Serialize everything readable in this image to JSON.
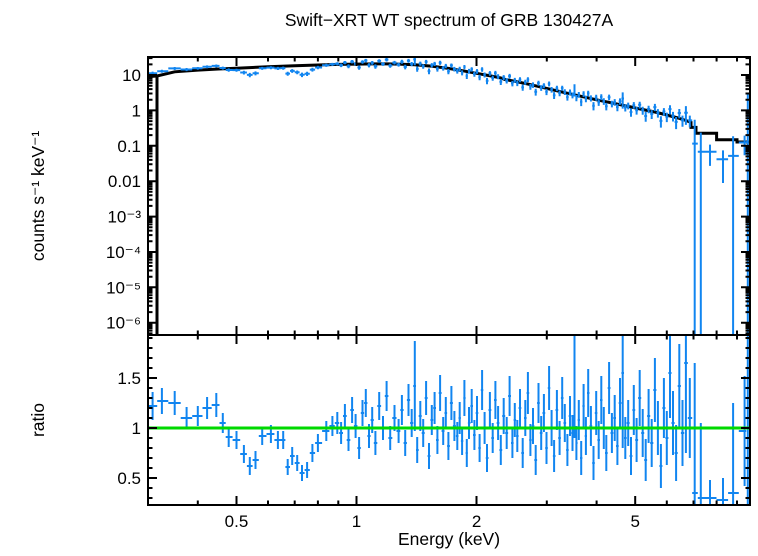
{
  "figure": {
    "background": "#ffffff"
  },
  "chart_data": {
    "type": "scatter",
    "title": "Swift−XRT WT spectrum of GRB 130427A",
    "xlabel": "Energy (keV)",
    "x_scale": "log",
    "x_range": [
      0.3,
      9.7
    ],
    "x_major_ticks": [
      {
        "value": 0.5,
        "label": "0.5"
      },
      {
        "value": 1,
        "label": "1"
      },
      {
        "value": 2,
        "label": "2"
      },
      {
        "value": 5,
        "label": "5"
      }
    ],
    "x_minor_ticks": [
      0.4,
      0.6,
      0.7,
      0.8,
      0.9,
      3,
      4,
      6,
      7,
      8,
      9
    ],
    "panels": [
      {
        "name": "spectrum",
        "ylabel": "counts s⁻¹ keV⁻¹",
        "y_scale": "log",
        "y_range": [
          4.5e-07,
          32.3
        ],
        "y_major_ticks": [
          {
            "value": 10,
            "label": "10"
          },
          {
            "value": 1,
            "label": "1"
          },
          {
            "value": 0.1,
            "label": "0.1"
          },
          {
            "value": 0.01,
            "label": "0.01"
          },
          {
            "value": 0.001,
            "label": "10⁻³"
          },
          {
            "value": 0.0001,
            "label": "10⁻⁴"
          },
          {
            "value": 1e-05,
            "label": "10⁻⁵"
          },
          {
            "value": 1e-06,
            "label": "10⁻⁶"
          }
        ]
      },
      {
        "name": "ratio",
        "ylabel": "ratio",
        "y_scale": "linear",
        "y_range": [
          0.23,
          1.93
        ],
        "y_major_ticks": [
          {
            "value": 0.5,
            "label": "0.5"
          },
          {
            "value": 1,
            "label": "1"
          },
          {
            "value": 1.5,
            "label": "1.5"
          }
        ],
        "y_minor_step": 0.1,
        "reference_line": {
          "value": 1,
          "color": "#00d900"
        }
      }
    ],
    "colors": {
      "data": "#1185f0",
      "model": "#000000",
      "frame": "#000000"
    },
    "model_left_edge": {
      "e": 0.316,
      "v": 9.4
    },
    "model": [
      [
        0.3,
        9.0
      ],
      [
        0.316,
        9.4
      ],
      [
        0.35,
        12.3
      ],
      [
        0.4,
        13.8
      ],
      [
        0.45,
        14.8
      ],
      [
        0.5,
        15.6
      ],
      [
        0.6,
        17.1
      ],
      [
        0.7,
        18.3
      ],
      [
        0.8,
        19.2
      ],
      [
        0.9,
        19.9
      ],
      [
        1.0,
        20.4
      ],
      [
        1.1,
        20.6
      ],
      [
        1.2,
        20.6
      ],
      [
        1.3,
        20.2
      ],
      [
        1.4,
        19.4
      ],
      [
        1.55,
        17.6
      ],
      [
        1.7,
        15.4
      ],
      [
        1.85,
        13.2
      ],
      [
        2.0,
        11.2
      ],
      [
        2.15,
        9.6
      ],
      [
        2.3,
        8.3
      ],
      [
        2.35,
        7.5
      ],
      [
        2.5,
        6.6
      ],
      [
        2.7,
        5.5
      ],
      [
        3.0,
        4.2
      ],
      [
        3.3,
        3.25
      ],
      [
        3.6,
        2.6
      ],
      [
        4.0,
        2.0
      ],
      [
        4.4,
        1.6
      ],
      [
        4.8,
        1.3
      ],
      [
        5.2,
        1.07
      ],
      [
        5.6,
        0.9
      ],
      [
        6.0,
        0.74
      ],
      [
        6.4,
        0.61
      ],
      [
        6.7,
        0.52
      ],
      [
        6.9,
        0.46
      ],
      [
        6.9,
        0.33
      ],
      [
        7.1,
        0.33
      ],
      [
        7.1,
        0.225
      ],
      [
        8.0,
        0.225
      ],
      [
        8.0,
        0.148
      ],
      [
        9.0,
        0.148
      ],
      [
        9.0,
        0.128
      ],
      [
        9.7,
        0.128
      ]
    ],
    "points_format": [
      "energy_keV",
      "ratio",
      "ratio_error"
    ],
    "points": [
      [
        0.308,
        1.22,
        0.14
      ],
      [
        0.325,
        1.27,
        0.13
      ],
      [
        0.35,
        1.25,
        0.12
      ],
      [
        0.375,
        1.1,
        0.11
      ],
      [
        0.4,
        1.12,
        0.1
      ],
      [
        0.422,
        1.2,
        0.11
      ],
      [
        0.445,
        1.23,
        0.12
      ],
      [
        0.462,
        1.05,
        0.1
      ],
      [
        0.478,
        0.91,
        0.1
      ],
      [
        0.5,
        0.88,
        0.09
      ],
      [
        0.522,
        0.74,
        0.09
      ],
      [
        0.54,
        0.62,
        0.09
      ],
      [
        0.558,
        0.68,
        0.09
      ],
      [
        0.58,
        0.92,
        0.09
      ],
      [
        0.61,
        0.94,
        0.09
      ],
      [
        0.635,
        0.88,
        0.09
      ],
      [
        0.655,
        0.88,
        0.09
      ],
      [
        0.672,
        0.61,
        0.08
      ],
      [
        0.69,
        0.72,
        0.09
      ],
      [
        0.71,
        0.65,
        0.08
      ],
      [
        0.73,
        0.55,
        0.08
      ],
      [
        0.752,
        0.58,
        0.08
      ],
      [
        0.775,
        0.75,
        0.09
      ],
      [
        0.8,
        0.85,
        0.09
      ],
      [
        0.84,
        0.97,
        0.1
      ],
      [
        0.87,
        1.02,
        0.1
      ],
      [
        0.895,
        1.05,
        0.11
      ],
      [
        0.915,
        0.95,
        0.11
      ],
      [
        0.935,
        1.12,
        0.12
      ],
      [
        0.955,
        0.88,
        0.11
      ],
      [
        0.975,
        1.18,
        0.13
      ],
      [
        0.995,
        1.02,
        0.12
      ],
      [
        1.015,
        0.8,
        0.11
      ],
      [
        1.035,
        1.15,
        0.13
      ],
      [
        1.055,
        1.25,
        0.14
      ],
      [
        1.075,
        0.92,
        0.12
      ],
      [
        1.095,
        1.08,
        0.13
      ],
      [
        1.115,
        0.85,
        0.12
      ],
      [
        1.14,
        1.22,
        0.14
      ],
      [
        1.165,
        1.0,
        0.12
      ],
      [
        1.19,
        1.32,
        0.15
      ],
      [
        1.215,
        0.9,
        0.12
      ],
      [
        1.245,
        1.1,
        0.13
      ],
      [
        1.275,
        0.97,
        0.12
      ],
      [
        1.3,
        1.18,
        0.15
      ],
      [
        1.325,
        0.85,
        0.13
      ],
      [
        1.35,
        1.28,
        0.16
      ],
      [
        1.375,
        1.05,
        0.14
      ],
      [
        1.4,
        1.42,
        0.45
      ],
      [
        1.42,
        0.78,
        0.13
      ],
      [
        1.445,
        1.12,
        0.15
      ],
      [
        1.47,
        0.95,
        0.14
      ],
      [
        1.495,
        1.3,
        0.17
      ],
      [
        1.52,
        0.72,
        0.13
      ],
      [
        1.545,
        1.08,
        0.15
      ],
      [
        1.57,
        1.2,
        0.16
      ],
      [
        1.595,
        0.88,
        0.14
      ],
      [
        1.62,
        1.35,
        0.18
      ],
      [
        1.65,
        0.97,
        0.14
      ],
      [
        1.675,
        1.15,
        0.16
      ],
      [
        1.7,
        0.82,
        0.14
      ],
      [
        1.73,
        1.25,
        0.17
      ],
      [
        1.76,
        1.02,
        0.15
      ],
      [
        1.79,
        0.92,
        0.14
      ],
      [
        1.815,
        1.1,
        0.16
      ],
      [
        1.84,
        0.87,
        0.14
      ],
      [
        1.865,
        1.3,
        0.18
      ],
      [
        1.89,
        0.75,
        0.14
      ],
      [
        1.915,
        1.05,
        0.16
      ],
      [
        1.945,
        1.22,
        0.17
      ],
      [
        1.975,
        0.93,
        0.15
      ],
      [
        2.005,
        1.15,
        0.17
      ],
      [
        2.035,
        0.8,
        0.14
      ],
      [
        2.065,
        1.38,
        0.2
      ],
      [
        2.095,
        1.0,
        0.16
      ],
      [
        2.125,
        0.7,
        0.14
      ],
      [
        2.16,
        1.18,
        0.18
      ],
      [
        2.195,
        0.9,
        0.15
      ],
      [
        2.23,
        1.28,
        0.19
      ],
      [
        2.265,
        1.05,
        0.17
      ],
      [
        2.3,
        0.78,
        0.15
      ],
      [
        2.34,
        1.12,
        0.18
      ],
      [
        2.38,
        0.95,
        0.16
      ],
      [
        2.42,
        1.32,
        0.2
      ],
      [
        2.46,
        0.85,
        0.15
      ],
      [
        2.495,
        1.08,
        0.17
      ],
      [
        2.53,
        0.92,
        0.16
      ],
      [
        2.57,
        1.2,
        0.19
      ],
      [
        2.61,
        0.75,
        0.15
      ],
      [
        2.65,
        1.1,
        0.18
      ],
      [
        2.69,
        1.35,
        0.21
      ],
      [
        2.73,
        0.88,
        0.16
      ],
      [
        2.77,
        1.02,
        0.18
      ],
      [
        2.815,
        0.68,
        0.15
      ],
      [
        2.86,
        1.25,
        0.2
      ],
      [
        2.905,
        0.95,
        0.17
      ],
      [
        2.95,
        1.15,
        0.19
      ],
      [
        2.995,
        0.8,
        0.16
      ],
      [
        3.04,
        1.4,
        0.22
      ],
      [
        3.085,
        1.0,
        0.18
      ],
      [
        3.13,
        0.72,
        0.16
      ],
      [
        3.18,
        1.18,
        0.2
      ],
      [
        3.23,
        0.9,
        0.17
      ],
      [
        3.28,
        1.3,
        0.21
      ],
      [
        3.33,
        1.05,
        0.19
      ],
      [
        3.38,
        0.78,
        0.16
      ],
      [
        3.43,
        1.12,
        0.2
      ],
      [
        3.48,
        0.95,
        0.18
      ],
      [
        3.52,
        1.45,
        0.55
      ],
      [
        3.56,
        0.85,
        0.17
      ],
      [
        3.61,
        1.08,
        0.2
      ],
      [
        3.66,
        0.7,
        0.17
      ],
      [
        3.71,
        1.22,
        0.22
      ],
      [
        3.76,
        0.92,
        0.19
      ],
      [
        3.81,
        1.35,
        0.24
      ],
      [
        3.87,
        1.02,
        0.2
      ],
      [
        3.93,
        0.65,
        0.17
      ],
      [
        3.99,
        1.15,
        0.22
      ],
      [
        4.05,
        0.88,
        0.19
      ],
      [
        4.11,
        1.28,
        0.24
      ],
      [
        4.17,
        1.0,
        0.21
      ],
      [
        4.23,
        0.75,
        0.18
      ],
      [
        4.3,
        1.4,
        0.26
      ],
      [
        4.37,
        0.95,
        0.2
      ],
      [
        4.44,
        1.1,
        0.23
      ],
      [
        4.51,
        0.82,
        0.19
      ],
      [
        4.58,
        1.25,
        0.25
      ],
      [
        4.65,
        1.55,
        0.75
      ],
      [
        4.72,
        0.9,
        0.21
      ],
      [
        4.8,
        1.05,
        0.23
      ],
      [
        4.88,
        0.72,
        0.19
      ],
      [
        4.96,
        1.18,
        0.25
      ],
      [
        5.04,
        0.88,
        0.22
      ],
      [
        5.13,
        1.3,
        0.28
      ],
      [
        5.22,
        0.95,
        0.24
      ],
      [
        5.31,
        0.68,
        0.21
      ],
      [
        5.4,
        1.12,
        0.27
      ],
      [
        5.5,
        0.85,
        0.24
      ],
      [
        5.6,
        1.38,
        0.32
      ],
      [
        5.7,
        1.0,
        0.27
      ],
      [
        5.8,
        0.62,
        0.22
      ],
      [
        5.9,
        1.2,
        0.3
      ],
      [
        6.0,
        0.9,
        0.27
      ],
      [
        6.11,
        1.55,
        0.45
      ],
      [
        6.22,
        1.05,
        0.32
      ],
      [
        6.33,
        0.75,
        0.28
      ],
      [
        6.45,
        1.42,
        0.42
      ],
      [
        6.57,
        0.95,
        0.33
      ],
      [
        6.7,
        1.65,
        0.9
      ],
      [
        6.85,
        1.1,
        0.4
      ],
      [
        7.05,
        0.35,
        1.3
      ],
      [
        7.3,
        0.3,
        0.75
      ],
      [
        7.7,
        0.3,
        0.18
      ],
      [
        8.3,
        0.28,
        0.22
      ],
      [
        8.8,
        0.35,
        0.9
      ],
      [
        9.4,
        0.97,
        0.55
      ],
      [
        9.58,
        1.0,
        23.0
      ]
    ]
  }
}
